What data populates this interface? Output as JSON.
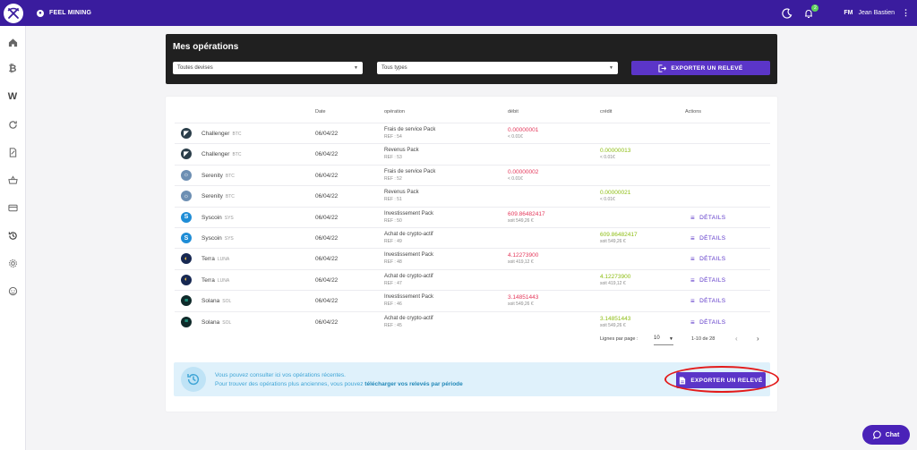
{
  "app": {
    "brand": "FEEL MINING"
  },
  "user": {
    "initials": "FM",
    "name": "Jean Bastien",
    "notifications": "2"
  },
  "header": {
    "title": "Mes opérations",
    "currency_filter": "Toutes devises",
    "type_filter": "Tous types",
    "export_label": "EXPORTER UN RELEVÉ"
  },
  "table": {
    "columns": {
      "date": "Date",
      "operation": "opération",
      "debit": "débit",
      "credit": "crédit",
      "actions": "Actions"
    },
    "details_label": "DÉTAILS",
    "rows": [
      {
        "coin": "Challenger",
        "ticker": "BTC",
        "date": "06/04/22",
        "op": "Frais de service Pack",
        "ref": "REF : 54",
        "debit": "0.00000001",
        "debit_sub": "< 0.01€",
        "credit": "",
        "credit_sub": "",
        "details": false
      },
      {
        "coin": "Challenger",
        "ticker": "BTC",
        "date": "06/04/22",
        "op": "Revenus Pack",
        "ref": "REF : 53",
        "debit": "",
        "debit_sub": "",
        "credit": "0.00000013",
        "credit_sub": "< 0.01€",
        "details": false
      },
      {
        "coin": "Serenity",
        "ticker": "BTC",
        "date": "06/04/22",
        "op": "Frais de service Pack",
        "ref": "REF : 52",
        "debit": "0.00000002",
        "debit_sub": "< 0.01€",
        "credit": "",
        "credit_sub": "",
        "details": false
      },
      {
        "coin": "Serenity",
        "ticker": "BTC",
        "date": "06/04/22",
        "op": "Revenus Pack",
        "ref": "REF : 51",
        "debit": "",
        "debit_sub": "",
        "credit": "0.00000021",
        "credit_sub": "< 0.01€",
        "details": false
      },
      {
        "coin": "Syscoin",
        "ticker": "SYS",
        "date": "06/04/22",
        "op": "Investissement Pack",
        "ref": "REF : 50",
        "debit": "609.86482417",
        "debit_sub": "soit 549,26 €",
        "credit": "",
        "credit_sub": "",
        "details": true
      },
      {
        "coin": "Syscoin",
        "ticker": "SYS",
        "date": "06/04/22",
        "op": "Achat de crypto-actif",
        "ref": "REF : 49",
        "debit": "",
        "debit_sub": "",
        "credit": "609.86482417",
        "credit_sub": "soit 549,26 €",
        "details": true
      },
      {
        "coin": "Terra",
        "ticker": "LUNA",
        "date": "06/04/22",
        "op": "Investissement Pack",
        "ref": "REF : 48",
        "debit": "4.12273900",
        "debit_sub": "soit 419,12 €",
        "credit": "",
        "credit_sub": "",
        "details": true
      },
      {
        "coin": "Terra",
        "ticker": "LUNA",
        "date": "06/04/22",
        "op": "Achat de crypto-actif",
        "ref": "REF : 47",
        "debit": "",
        "debit_sub": "",
        "credit": "4.12273900",
        "credit_sub": "soit 419,12 €",
        "details": true
      },
      {
        "coin": "Solana",
        "ticker": "SOL",
        "date": "06/04/22",
        "op": "Investissement Pack",
        "ref": "REF : 46",
        "debit": "3.14851443",
        "debit_sub": "soit 549,26 €",
        "credit": "",
        "credit_sub": "",
        "details": true
      },
      {
        "coin": "Solana",
        "ticker": "SOL",
        "date": "06/04/22",
        "op": "Achat de crypto-actif",
        "ref": "REF : 45",
        "debit": "",
        "debit_sub": "",
        "credit": "3.14851443",
        "credit_sub": "soit 549,26 €",
        "details": true
      }
    ]
  },
  "pagination": {
    "rows_per_page_label": "Lignes par page :",
    "rows_per_page": "10",
    "range": "1-10 de 28"
  },
  "info": {
    "line1": "Vous pouvez consulter ici vos opérations récentes.",
    "line2_prefix": "Pour trouver des opérations plus anciennes, vous pouvez ",
    "line2_link": "télécharger vos relevés par période",
    "export_label": "EXPORTER UN RELEVÉ"
  },
  "chat": {
    "label": "Chat"
  },
  "colors": {
    "accent": "#5b35c8",
    "topbar": "#3a1c9e",
    "debit": "#e4385b",
    "credit": "#8dbd12",
    "highlight": "#e31b1b"
  }
}
